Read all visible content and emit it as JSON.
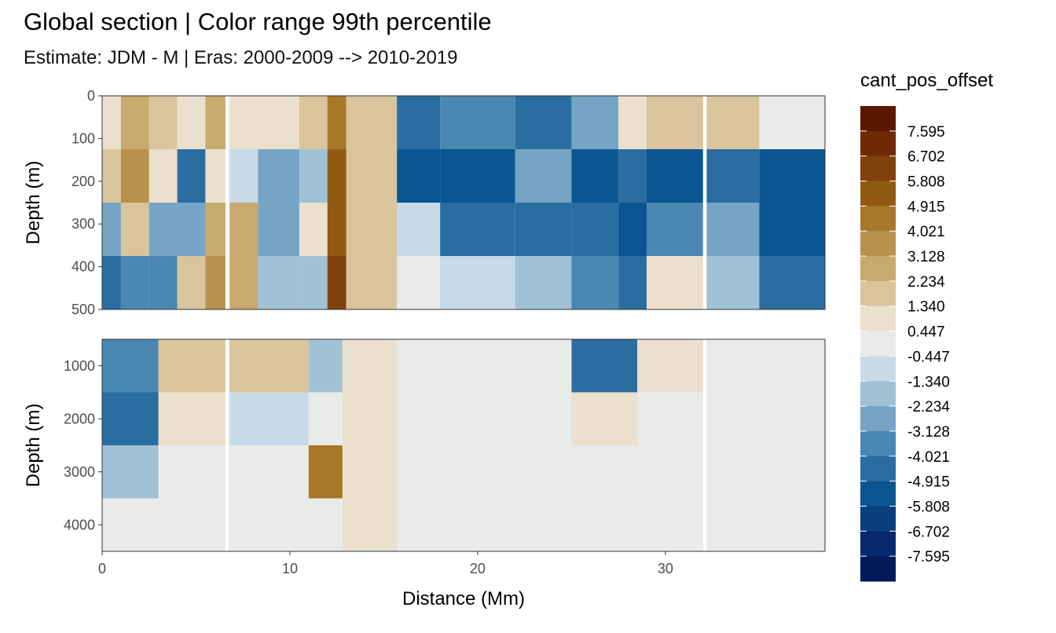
{
  "chart_data": {
    "type": "heatmap",
    "title": "Global section | Color range 99th percentile",
    "subtitle": "Estimate: JDM - M | Eras: 2000-2009 --> 2010-2019",
    "xlabel": "Distance (Mm)",
    "ylabel": "Depth (m)",
    "legend_title": "cant_pos_offset",
    "legend_position": "right",
    "grid": true,
    "x_ticks": [
      "0",
      "10",
      "20",
      "30"
    ],
    "xlim": [
      0,
      38.5
    ],
    "panels": [
      {
        "name": "upper",
        "ylim": [
          500,
          0
        ],
        "y_ticks": [
          "0",
          "100",
          "200",
          "300",
          "400",
          "500"
        ]
      },
      {
        "name": "lower",
        "ylim": [
          4500,
          500
        ],
        "y_ticks": [
          "1000",
          "2000",
          "3000",
          "4000"
        ]
      }
    ],
    "color_levels": [
      "7.595",
      "6.702",
      "5.808",
      "4.915",
      "4.021",
      "3.128",
      "2.234",
      "1.340",
      "0.447",
      "-0.447",
      "-1.340",
      "-2.234",
      "-3.128",
      "-4.021",
      "-4.915",
      "-5.808",
      "-6.702",
      "-7.595"
    ],
    "colors": [
      "#5b1700",
      "#6e2a04",
      "#80420a",
      "#915a12",
      "#a7782a",
      "#b8914c",
      "#c8a96e",
      "#d9c49c",
      "#ebe0cd",
      "#e9ebe9",
      "#c7dae7",
      "#a1c1d7",
      "#76a4c5",
      "#4a87b2",
      "#2a6ea1",
      "#0b5591",
      "#093f7e",
      "#05296b",
      "#021a5a"
    ],
    "upper_columns": [
      {
        "x": [
          0,
          1
        ],
        "levels": [
          1,
          2,
          -3,
          -5
        ]
      },
      {
        "x": [
          1,
          2.5
        ],
        "levels": [
          3,
          4,
          2,
          -4
        ]
      },
      {
        "x": [
          2.5,
          4
        ],
        "levels": [
          2,
          1,
          -3,
          -4
        ]
      },
      {
        "x": [
          4,
          5.5
        ],
        "levels": [
          1,
          -5,
          -3,
          2
        ]
      },
      {
        "x": [
          5.5,
          6.6
        ],
        "levels": [
          3,
          1,
          3,
          4
        ]
      },
      {
        "x": [
          6.8,
          8.3
        ],
        "levels": [
          1,
          -1,
          3,
          3
        ]
      },
      {
        "x": [
          8.3,
          10.5
        ],
        "levels": [
          1,
          -3,
          -3,
          -2
        ]
      },
      {
        "x": [
          10.5,
          12.8
        ],
        "levels": [
          2,
          -2,
          1,
          -2
        ]
      },
      {
        "x": [
          12,
          13
        ],
        "levels": [
          5,
          6,
          6,
          7
        ]
      },
      {
        "x": [
          13,
          15.7
        ],
        "levels": [
          2,
          2,
          2,
          2
        ]
      },
      {
        "x": [
          15.7,
          18
        ],
        "levels": [
          -5,
          -6,
          -1,
          0
        ]
      },
      {
        "x": [
          18,
          22
        ],
        "levels": [
          -4,
          -6,
          -5,
          -1
        ]
      },
      {
        "x": [
          22,
          25
        ],
        "levels": [
          -5,
          -3,
          -5,
          -2
        ]
      },
      {
        "x": [
          25,
          27.5
        ],
        "levels": [
          -3,
          -6,
          -5,
          -4
        ]
      },
      {
        "x": [
          27.5,
          29
        ],
        "levels": [
          1,
          -5,
          -6,
          -5
        ]
      },
      {
        "x": [
          29,
          32
        ],
        "levels": [
          2,
          -6,
          -4,
          1
        ]
      },
      {
        "x": [
          32.2,
          35
        ],
        "levels": [
          2,
          -5,
          -3,
          -2
        ]
      },
      {
        "x": [
          35,
          38.5
        ],
        "levels": [
          0,
          -6,
          -6,
          -5
        ]
      }
    ],
    "lower_columns": [
      {
        "x": [
          0,
          3
        ],
        "levels": [
          -4,
          -5,
          -2,
          0
        ]
      },
      {
        "x": [
          3,
          6.6
        ],
        "levels": [
          2,
          1,
          0,
          0
        ]
      },
      {
        "x": [
          6.8,
          11
        ],
        "levels": [
          2,
          -1,
          0,
          0
        ]
      },
      {
        "x": [
          11,
          12.8
        ],
        "levels": [
          -2,
          0,
          5,
          0
        ]
      },
      {
        "x": [
          12.8,
          15.7
        ],
        "levels": [
          1,
          1,
          1,
          1
        ]
      },
      {
        "x": [
          15.7,
          25
        ],
        "levels": [
          0,
          0,
          0,
          0
        ]
      },
      {
        "x": [
          25,
          28.5
        ],
        "levels": [
          -5,
          1,
          0,
          0
        ]
      },
      {
        "x": [
          28.5,
          32
        ],
        "levels": [
          1,
          0,
          0,
          0
        ]
      },
      {
        "x": [
          32.2,
          38.5
        ],
        "levels": [
          0,
          0,
          0,
          0
        ]
      }
    ]
  }
}
